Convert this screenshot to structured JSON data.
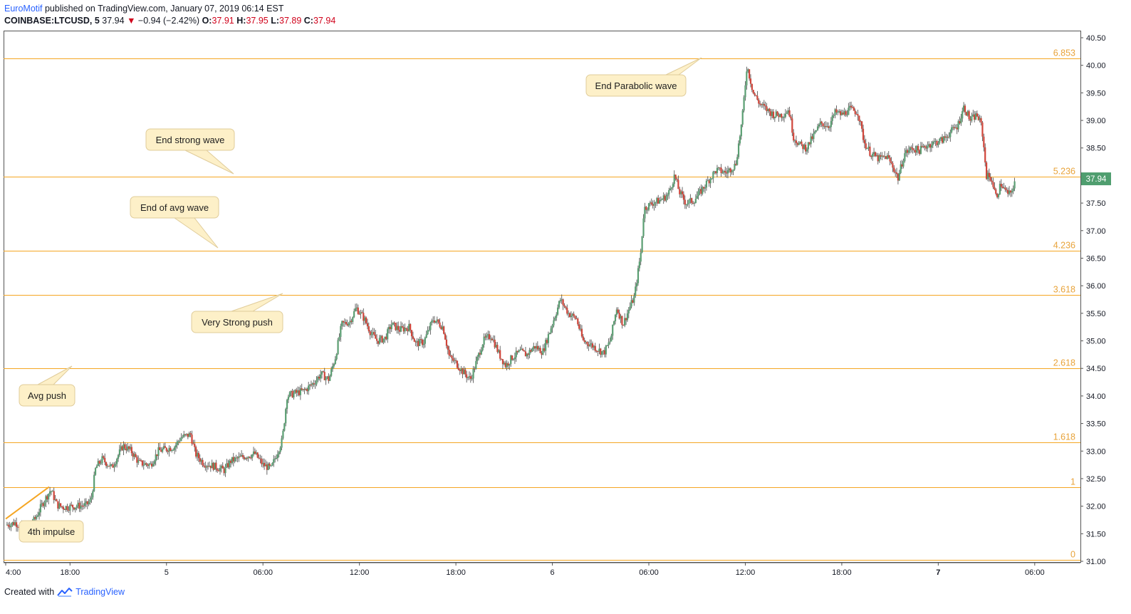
{
  "header": {
    "author": "EuroMotif",
    "published_text": " published on TradingView.com, January 07, 2019 06:14 EST",
    "symbol": "COINBASE:LTCUSD, 5",
    "last_price": "37.94",
    "change_arrow": "▼",
    "change": "−0.94 (−2.42%)",
    "o_label": "O:",
    "o_value": "37.91",
    "h_label": "H:",
    "h_value": "37.95",
    "l_label": "L:",
    "l_value": "37.89",
    "c_label": "C:",
    "c_value": "37.94"
  },
  "footer": {
    "created_with": "Created with",
    "brand": "TradingView"
  },
  "colors": {
    "up": "#5a9e72",
    "down": "#d0453a",
    "fib": "#f5a623",
    "fib_label": "#e8a33a",
    "callout_bg": "#fdf0c8",
    "callout_border": "#e0cc9a",
    "price_tag": "#4f9e6f"
  },
  "chart_data": {
    "type": "candlestick",
    "ylim": [
      31.0,
      40.5
    ],
    "y_ticks": [
      "40.50",
      "40.00",
      "39.50",
      "39.00",
      "38.50",
      "38.00",
      "37.50",
      "37.00",
      "36.50",
      "36.00",
      "35.50",
      "35.00",
      "34.50",
      "34.00",
      "33.50",
      "33.00",
      "32.50",
      "32.00",
      "31.50",
      "31.00"
    ],
    "x_ticks": [
      "4:00",
      "18:00",
      "5",
      "06:00",
      "12:00",
      "18:00",
      "6",
      "06:00",
      "12:00",
      "18:00",
      "7",
      "06:00"
    ],
    "x_ticks_bold": [
      false,
      false,
      false,
      false,
      false,
      false,
      false,
      false,
      false,
      false,
      true,
      false
    ],
    "x_tick_hours": [
      14,
      18,
      24,
      30,
      36,
      42,
      48,
      54,
      60,
      66,
      72,
      78
    ],
    "x_range_hours": [
      14.0,
      80.4
    ],
    "last_price_tag": "37.94",
    "last_price": 37.94,
    "fib_levels": [
      {
        "label": "6.853",
        "price": 40.12
      },
      {
        "label": "5.236",
        "price": 37.98
      },
      {
        "label": "4.236",
        "price": 36.64
      },
      {
        "label": "3.618",
        "price": 35.83
      },
      {
        "label": "2.618",
        "price": 34.5
      },
      {
        "label": "1.618",
        "price": 33.16
      },
      {
        "label": "1",
        "price": 32.35
      },
      {
        "label": "0",
        "price": 31.02
      }
    ],
    "trend_line": {
      "from": [
        14.0,
        31.77
      ],
      "to": [
        16.7,
        32.35
      ]
    },
    "price_path": [
      [
        14.0,
        31.66
      ],
      [
        14.6,
        31.7
      ],
      [
        15.2,
        31.6
      ],
      [
        15.8,
        31.75
      ],
      [
        16.3,
        32.05
      ],
      [
        16.8,
        32.3
      ],
      [
        17.2,
        32.02
      ],
      [
        17.6,
        31.98
      ],
      [
        18.3,
        32.0
      ],
      [
        19.0,
        32.02
      ],
      [
        19.3,
        32.1
      ],
      [
        19.6,
        32.7
      ],
      [
        20.0,
        32.85
      ],
      [
        20.6,
        32.7
      ],
      [
        21.3,
        33.1
      ],
      [
        21.8,
        33.0
      ],
      [
        22.3,
        32.78
      ],
      [
        23.0,
        32.75
      ],
      [
        23.5,
        33.0
      ],
      [
        24.5,
        33.08
      ],
      [
        24.9,
        33.25
      ],
      [
        25.5,
        33.3
      ],
      [
        25.8,
        32.95
      ],
      [
        26.3,
        32.78
      ],
      [
        27.0,
        32.72
      ],
      [
        27.6,
        32.65
      ],
      [
        28.0,
        32.82
      ],
      [
        28.8,
        32.9
      ],
      [
        29.5,
        32.95
      ],
      [
        30.0,
        32.75
      ],
      [
        30.5,
        32.68
      ],
      [
        30.9,
        32.98
      ],
      [
        31.2,
        33.2
      ],
      [
        31.5,
        34.0
      ],
      [
        32.0,
        34.05
      ],
      [
        32.6,
        34.1
      ],
      [
        33.2,
        34.25
      ],
      [
        33.6,
        34.4
      ],
      [
        34.1,
        34.3
      ],
      [
        34.5,
        34.7
      ],
      [
        34.9,
        35.3
      ],
      [
        35.4,
        35.35
      ],
      [
        35.8,
        35.6
      ],
      [
        36.3,
        35.4
      ],
      [
        36.7,
        35.15
      ],
      [
        37.1,
        35.0
      ],
      [
        37.6,
        35.05
      ],
      [
        38.0,
        35.3
      ],
      [
        38.5,
        35.2
      ],
      [
        39.1,
        35.25
      ],
      [
        39.5,
        34.95
      ],
      [
        40.0,
        34.98
      ],
      [
        40.6,
        35.4
      ],
      [
        41.2,
        35.25
      ],
      [
        41.6,
        34.7
      ],
      [
        42.0,
        34.6
      ],
      [
        42.4,
        34.45
      ],
      [
        42.9,
        34.3
      ],
      [
        43.2,
        34.55
      ],
      [
        43.7,
        35.0
      ],
      [
        44.2,
        35.1
      ],
      [
        44.7,
        34.75
      ],
      [
        45.1,
        34.55
      ],
      [
        45.5,
        34.7
      ],
      [
        46.0,
        34.8
      ],
      [
        46.4,
        34.75
      ],
      [
        46.9,
        34.9
      ],
      [
        47.4,
        34.8
      ],
      [
        48.1,
        35.4
      ],
      [
        48.5,
        35.75
      ],
      [
        49.0,
        35.5
      ],
      [
        49.5,
        35.4
      ],
      [
        49.9,
        35.0
      ],
      [
        50.3,
        34.95
      ],
      [
        50.8,
        34.85
      ],
      [
        51.2,
        34.78
      ],
      [
        51.6,
        35.0
      ],
      [
        52.0,
        35.6
      ],
      [
        52.4,
        35.3
      ],
      [
        52.8,
        35.6
      ],
      [
        53.1,
        35.8
      ],
      [
        53.5,
        36.6
      ],
      [
        53.7,
        37.4
      ],
      [
        54.2,
        37.5
      ],
      [
        54.7,
        37.55
      ],
      [
        55.2,
        37.65
      ],
      [
        55.6,
        38.0
      ],
      [
        55.9,
        37.7
      ],
      [
        56.3,
        37.5
      ],
      [
        56.8,
        37.55
      ],
      [
        57.2,
        37.7
      ],
      [
        57.8,
        37.95
      ],
      [
        58.2,
        38.1
      ],
      [
        58.8,
        38.05
      ],
      [
        59.4,
        38.2
      ],
      [
        59.8,
        39.0
      ],
      [
        60.1,
        40.0
      ],
      [
        60.5,
        39.5
      ],
      [
        60.9,
        39.3
      ],
      [
        61.3,
        39.2
      ],
      [
        61.8,
        39.1
      ],
      [
        62.3,
        39.1
      ],
      [
        62.7,
        39.2
      ],
      [
        63.0,
        38.7
      ],
      [
        63.4,
        38.55
      ],
      [
        63.8,
        38.5
      ],
      [
        64.2,
        38.7
      ],
      [
        64.7,
        38.95
      ],
      [
        65.2,
        38.9
      ],
      [
        65.6,
        39.15
      ],
      [
        66.0,
        39.1
      ],
      [
        66.5,
        39.2
      ],
      [
        67.0,
        39.15
      ],
      [
        67.4,
        38.6
      ],
      [
        67.8,
        38.4
      ],
      [
        68.3,
        38.3
      ],
      [
        68.8,
        38.35
      ],
      [
        69.2,
        38.15
      ],
      [
        69.5,
        37.95
      ],
      [
        69.9,
        38.4
      ],
      [
        70.4,
        38.5
      ],
      [
        70.8,
        38.45
      ],
      [
        71.3,
        38.55
      ],
      [
        71.8,
        38.6
      ],
      [
        72.3,
        38.65
      ],
      [
        72.8,
        38.8
      ],
      [
        73.2,
        38.9
      ],
      [
        73.6,
        39.25
      ],
      [
        74.0,
        39.0
      ],
      [
        74.4,
        39.1
      ],
      [
        74.7,
        38.9
      ],
      [
        75.0,
        38.0
      ],
      [
        75.3,
        37.95
      ],
      [
        75.6,
        37.6
      ],
      [
        75.9,
        37.85
      ],
      [
        76.2,
        37.7
      ],
      [
        76.5,
        37.65
      ],
      [
        76.8,
        37.94
      ]
    ],
    "candle_minutes": 5,
    "noise_seed": 7
  },
  "annotations": [
    {
      "id": "end-parabolic-wave",
      "text": "End Parabolic wave"
    },
    {
      "id": "end-strong-wave",
      "text": "End strong wave"
    },
    {
      "id": "end-of-avg-wave",
      "text": "End of avg wave"
    },
    {
      "id": "very-strong-push",
      "text": "Very Strong push"
    },
    {
      "id": "avg-push",
      "text": "Avg push"
    },
    {
      "id": "4th-impulse",
      "text": "4th impulse"
    }
  ]
}
